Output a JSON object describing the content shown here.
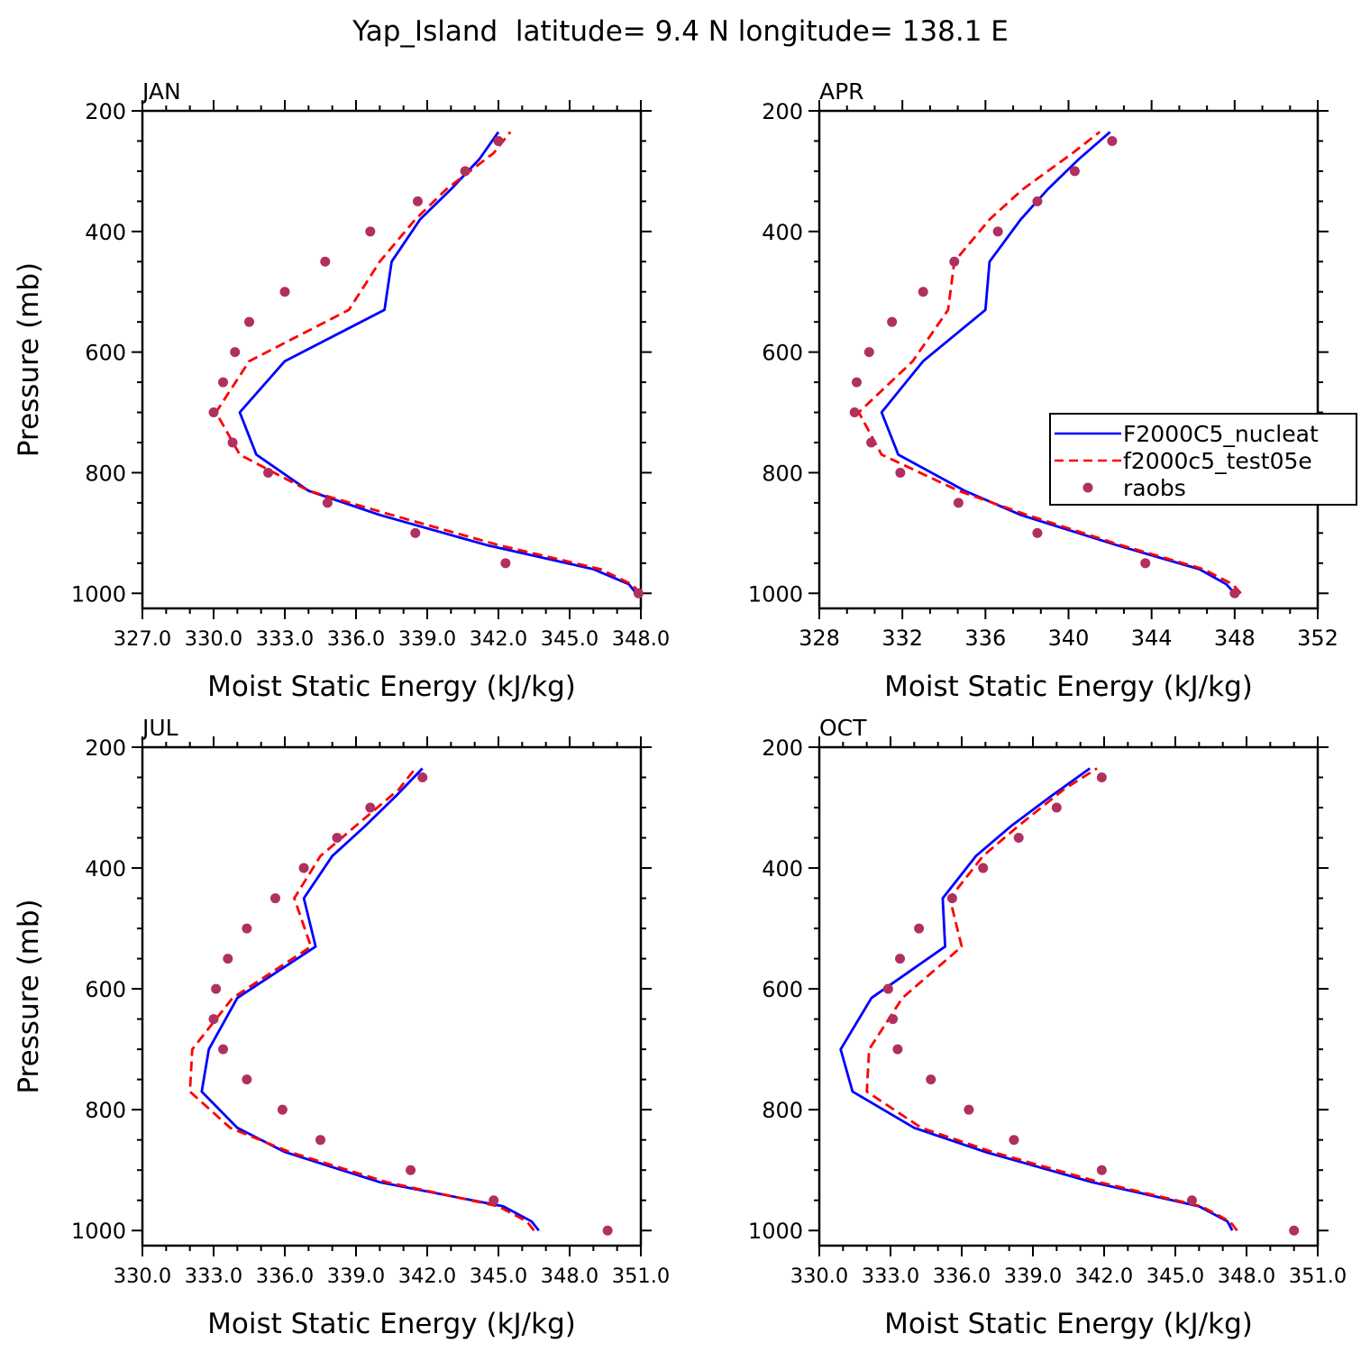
{
  "figure": {
    "title": "Yap_Island  latitude= 9.4 N longitude= 138.1 E",
    "colors": {
      "model1": "#0000ff",
      "model2": "#ff0000",
      "obs": "#b03060"
    }
  },
  "legend": {
    "placement": "right of APR panel",
    "entries": [
      {
        "label": "F2000C5_nucleat",
        "style": "solid",
        "color": "#0000ff"
      },
      {
        "label": "f2000c5_test05e",
        "style": "dashed",
        "color": "#ff0000"
      },
      {
        "label": "raobs",
        "style": "dot",
        "color": "#b03060"
      }
    ]
  },
  "chart_data": [
    {
      "type": "line",
      "panel": "JAN",
      "title": "JAN",
      "xlabel": "Moist Static Energy (kJ/kg)",
      "ylabel": "Pressure (mb)",
      "xlim": [
        327,
        348
      ],
      "ylim": [
        1000,
        200
      ],
      "ylog": false,
      "xticks": [
        327,
        330,
        333,
        336,
        339,
        342,
        345,
        348
      ],
      "xticklabels": [
        "327.0",
        "330.0",
        "333.0",
        "336.0",
        "339.0",
        "342.0",
        "345.0",
        "348.0"
      ],
      "yticks": [
        200,
        400,
        600,
        800,
        1000
      ],
      "yticklabels": [
        "200",
        "400",
        "600",
        "800",
        "1000"
      ],
      "series": [
        {
          "name": "F2000C5_nucleat",
          "y": [
            1000,
            985,
            960,
            920,
            870,
            830,
            770,
            700,
            615,
            530,
            450,
            380,
            330,
            280,
            235
          ],
          "x": [
            347.8,
            347.5,
            346.0,
            341.5,
            337.0,
            334.0,
            331.8,
            331.1,
            333.0,
            337.2,
            337.5,
            338.7,
            340.0,
            341.2,
            342.0
          ]
        },
        {
          "name": "f2000c5_test05e",
          "y": [
            1000,
            985,
            960,
            920,
            870,
            830,
            770,
            700,
            615,
            530,
            450,
            380,
            330,
            270,
            235
          ],
          "x": [
            348.0,
            347.6,
            346.3,
            342.0,
            337.5,
            334.0,
            331.1,
            330.1,
            331.5,
            335.7,
            337.0,
            338.5,
            339.8,
            341.8,
            342.5
          ]
        },
        {
          "name": "raobs",
          "y": [
            1000,
            950,
            900,
            850,
            800,
            750,
            700,
            650,
            600,
            550,
            500,
            450,
            400,
            350,
            300,
            250
          ],
          "x": [
            347.9,
            342.3,
            338.5,
            334.8,
            332.3,
            330.8,
            330.0,
            330.4,
            330.9,
            331.5,
            333.0,
            334.7,
            336.6,
            338.6,
            340.6,
            342.0
          ]
        }
      ]
    },
    {
      "type": "line",
      "panel": "APR",
      "title": "APR",
      "xlabel": "Moist Static Energy (kJ/kg)",
      "ylabel": "",
      "xlim": [
        328,
        352
      ],
      "ylim": [
        1000,
        200
      ],
      "ylog": false,
      "xticks": [
        328,
        332,
        336,
        340,
        344,
        348,
        352
      ],
      "xticklabels": [
        "328",
        "332",
        "336",
        "340",
        "344",
        "348",
        "352"
      ],
      "yticks": [
        200,
        400,
        600,
        800,
        1000
      ],
      "yticklabels": [
        "200",
        "400",
        "600",
        "800",
        "1000"
      ],
      "series": [
        {
          "name": "F2000C5_nucleat",
          "y": [
            1000,
            985,
            960,
            920,
            870,
            830,
            770,
            700,
            615,
            530,
            450,
            380,
            330,
            280,
            235
          ],
          "x": [
            348.0,
            347.6,
            346.3,
            342.3,
            337.7,
            335.0,
            331.8,
            331.0,
            333.0,
            336.0,
            336.2,
            337.7,
            339.0,
            340.5,
            342.0
          ]
        },
        {
          "name": "f2000c5_test05e",
          "y": [
            1000,
            985,
            960,
            920,
            870,
            830,
            770,
            700,
            615,
            530,
            450,
            380,
            330,
            270,
            235
          ],
          "x": [
            348.3,
            347.9,
            346.5,
            342.5,
            338.0,
            334.7,
            331.0,
            329.9,
            332.5,
            334.2,
            334.5,
            336.2,
            337.8,
            340.2,
            341.5
          ]
        },
        {
          "name": "raobs",
          "y": [
            1000,
            950,
            900,
            850,
            800,
            750,
            700,
            650,
            600,
            550,
            500,
            450,
            400,
            350,
            300,
            250
          ],
          "x": [
            348.0,
            343.7,
            338.5,
            334.7,
            331.9,
            330.5,
            329.7,
            329.8,
            330.4,
            331.5,
            333.0,
            334.5,
            336.6,
            338.5,
            340.3,
            342.1
          ]
        }
      ]
    },
    {
      "type": "line",
      "panel": "JUL",
      "title": "JUL",
      "xlabel": "Moist Static Energy (kJ/kg)",
      "ylabel": "Pressure (mb)",
      "xlim": [
        330,
        351
      ],
      "ylim": [
        1000,
        200
      ],
      "ylog": false,
      "xticks": [
        330,
        333,
        336,
        339,
        342,
        345,
        348,
        351
      ],
      "xticklabels": [
        "330.0",
        "333.0",
        "336.0",
        "339.0",
        "342.0",
        "345.0",
        "348.0",
        "351.0"
      ],
      "yticks": [
        200,
        400,
        600,
        800,
        1000
      ],
      "yticklabels": [
        "200",
        "400",
        "600",
        "800",
        "1000"
      ],
      "series": [
        {
          "name": "F2000C5_nucleat",
          "y": [
            1000,
            985,
            960,
            920,
            870,
            830,
            770,
            700,
            615,
            530,
            450,
            380,
            330,
            280,
            235
          ],
          "x": [
            346.7,
            346.4,
            345.2,
            340.0,
            336.0,
            334.0,
            332.5,
            332.8,
            334.0,
            337.3,
            336.8,
            338.0,
            339.4,
            340.7,
            341.8
          ]
        },
        {
          "name": "f2000c5_test05e",
          "y": [
            1000,
            985,
            960,
            920,
            870,
            830,
            770,
            700,
            615,
            530,
            450,
            380,
            330,
            270,
            235
          ],
          "x": [
            346.5,
            346.2,
            345.0,
            340.3,
            336.2,
            333.7,
            332.0,
            332.1,
            333.8,
            337.1,
            336.4,
            337.5,
            339.0,
            340.8,
            341.5
          ]
        },
        {
          "name": "raobs",
          "y": [
            1000,
            950,
            900,
            850,
            800,
            750,
            700,
            650,
            600,
            550,
            500,
            450,
            400,
            350,
            300,
            250
          ],
          "x": [
            349.6,
            344.8,
            341.3,
            337.5,
            335.9,
            334.4,
            333.4,
            333.0,
            333.1,
            333.6,
            334.4,
            335.6,
            336.8,
            338.2,
            339.6,
            341.8
          ]
        }
      ]
    },
    {
      "type": "line",
      "panel": "OCT",
      "title": "OCT",
      "xlabel": "Moist Static Energy (kJ/kg)",
      "ylabel": "",
      "xlim": [
        330,
        351
      ],
      "ylim": [
        1000,
        200
      ],
      "ylog": false,
      "xticks": [
        330,
        333,
        336,
        339,
        342,
        345,
        348,
        351
      ],
      "xticklabels": [
        "330.0",
        "333.0",
        "336.0",
        "339.0",
        "342.0",
        "345.0",
        "348.0",
        "351.0"
      ],
      "yticks": [
        200,
        400,
        600,
        800,
        1000
      ],
      "yticklabels": [
        "200",
        "400",
        "600",
        "800",
        "1000"
      ],
      "series": [
        {
          "name": "F2000C5_nucleat",
          "y": [
            1000,
            985,
            960,
            920,
            870,
            830,
            770,
            700,
            615,
            530,
            450,
            380,
            330,
            280,
            235
          ],
          "x": [
            347.4,
            347.2,
            346.0,
            341.5,
            337.0,
            334.0,
            331.4,
            330.9,
            332.2,
            335.3,
            335.2,
            336.6,
            338.1,
            339.8,
            341.4
          ]
        },
        {
          "name": "f2000c5_test05e",
          "y": [
            1000,
            985,
            960,
            920,
            870,
            830,
            770,
            700,
            615,
            530,
            450,
            380,
            330,
            270,
            235
          ],
          "x": [
            347.6,
            347.3,
            346.1,
            341.8,
            337.3,
            334.3,
            332.0,
            332.1,
            333.5,
            336.0,
            335.5,
            336.9,
            338.4,
            340.3,
            341.7
          ]
        },
        {
          "name": "raobs",
          "y": [
            1000,
            950,
            900,
            850,
            800,
            750,
            700,
            650,
            600,
            550,
            500,
            450,
            400,
            350,
            300,
            250
          ],
          "x": [
            350.0,
            345.7,
            341.9,
            338.2,
            336.3,
            334.7,
            333.3,
            333.1,
            332.9,
            333.4,
            334.2,
            335.6,
            336.9,
            338.4,
            340.0,
            341.9
          ]
        }
      ]
    }
  ]
}
